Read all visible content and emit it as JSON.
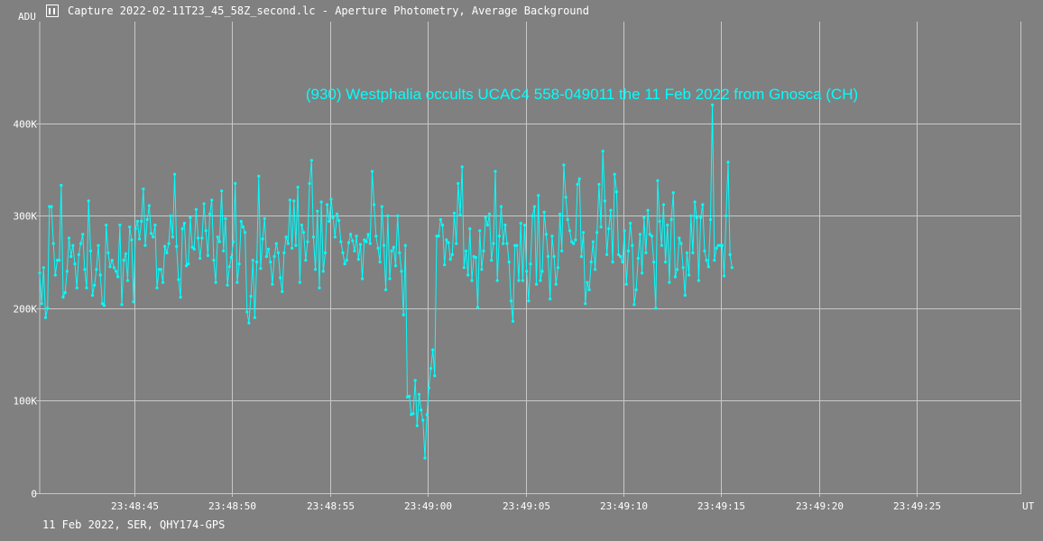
{
  "window": {
    "title": "Capture 2022-02-11T23_45_58Z_second.lc - Aperture Photometry, Average Background"
  },
  "footer": {
    "info": "11 Feb 2022, SER, QHY174-GPS"
  },
  "colors": {
    "background": "#808080",
    "grid": "#c8c8c8",
    "series": "#00ffff",
    "text": "#ffffff"
  },
  "icon": "window-app-icon",
  "chart_data": {
    "type": "line",
    "title": "(930) Westphalia occults UCAC4 558-049011 the 11 Feb 2022 from Gnosca (CH)",
    "ylabel": "ADU",
    "xlabel": "UT",
    "y_ticks": [
      "0",
      "100K",
      "200K",
      "300K",
      "400K"
    ],
    "y_tick_values": [
      0,
      100000,
      200000,
      300000,
      400000
    ],
    "ylim": [
      0,
      510000
    ],
    "x_ticks": [
      "23:48:45",
      "23:48:50",
      "23:48:55",
      "23:49:00",
      "23:49:05",
      "23:49:10",
      "23:49:15",
      "23:49:20",
      "23:49:25"
    ],
    "x_tick_seconds": [
      45,
      50,
      55,
      60,
      65,
      70,
      75,
      80,
      85
    ],
    "xlim_seconds": [
      40.15,
      90.3
    ],
    "x_start_second": 40.15,
    "sample_interval_s": 0.1,
    "grid": true,
    "markers": true,
    "series": [
      {
        "name": "",
        "values": [
          238000,
          205000,
          244000,
          190000,
          200000,
          310000,
          310000,
          270000,
          236000,
          252000,
          252000,
          333000,
          212000,
          217000,
          240000,
          276000,
          256000,
          268000,
          248000,
          222000,
          258000,
          270000,
          280000,
          242000,
          222000,
          316000,
          262000,
          214000,
          225000,
          242000,
          268000,
          236000,
          205000,
          203000,
          290000,
          260000,
          245000,
          252000,
          244000,
          240000,
          234000,
          290000,
          204000,
          252000,
          259000,
          230000,
          288000,
          274000,
          207000,
          286000,
          294000,
          275000,
          294000,
          329000,
          268000,
          296000,
          311000,
          281000,
          277000,
          290000,
          222000,
          242000,
          242000,
          228000,
          267000,
          260000,
          270000,
          300000,
          277000,
          345000,
          267000,
          231000,
          212000,
          286000,
          292000,
          246000,
          248000,
          298000,
          266000,
          264000,
          307000,
          276000,
          254000,
          276000,
          313000,
          284000,
          257000,
          302000,
          317000,
          252000,
          228000,
          277000,
          272000,
          327000,
          262000,
          297000,
          225000,
          245000,
          255000,
          272000,
          335000,
          228000,
          248000,
          294000,
          288000,
          282000,
          196000,
          184000,
          213000,
          252000,
          190000,
          250000,
          343000,
          243000,
          275000,
          297000,
          256000,
          264000,
          250000,
          226000,
          256000,
          270000,
          260000,
          233000,
          218000,
          260000,
          277000,
          270000,
          317000,
          265000,
          316000,
          268000,
          331000,
          228000,
          290000,
          282000,
          252000,
          272000,
          335000,
          360000,
          277000,
          242000,
          305000,
          222000,
          315000,
          240000,
          260000,
          312000,
          294000,
          318000,
          298000,
          277000,
          302000,
          295000,
          272000,
          260000,
          248000,
          252000,
          271000,
          280000,
          273000,
          262000,
          278000,
          253000,
          269000,
          232000,
          274000,
          272000,
          280000,
          270000,
          348000,
          312000,
          278000,
          265000,
          250000,
          310000,
          268000,
          220000,
          300000,
          232000,
          262000,
          266000,
          246000,
          300000,
          260000,
          240000,
          193000,
          268000,
          104000,
          105000,
          85000,
          86000,
          122000,
          73000,
          107000,
          90000,
          79000,
          38000,
          85000,
          114000,
          135000,
          155000,
          127000,
          278000,
          278000,
          296000,
          290000,
          247000,
          274000,
          271000,
          253000,
          258000,
          303000,
          270000,
          335000,
          301000,
          353000,
          244000,
          262000,
          236000,
          286000,
          230000,
          256000,
          255000,
          201000,
          284000,
          242000,
          262000,
          298000,
          290000,
          302000,
          252000,
          270000,
          348000,
          230000,
          278000,
          310000,
          270000,
          290000,
          270000,
          250000,
          208000,
          186000,
          268000,
          268000,
          230000,
          292000,
          230000,
          290000,
          240000,
          208000,
          248000,
          300000,
          310000,
          226000,
          322000,
          230000,
          240000,
          304000,
          280000,
          256000,
          210000,
          278000,
          256000,
          226000,
          244000,
          302000,
          262000,
          355000,
          320000,
          296000,
          284000,
          272000,
          270000,
          274000,
          334000,
          340000,
          256000,
          282000,
          205000,
          228000,
          220000,
          250000,
          272000,
          242000,
          282000,
          334000,
          288000,
          370000,
          316000,
          258000,
          286000,
          306000,
          250000,
          345000,
          326000,
          258000,
          256000,
          250000,
          284000,
          226000,
          262000,
          292000,
          268000,
          204000,
          220000,
          254000,
          280000,
          238000,
          298000,
          260000,
          306000,
          280000,
          278000,
          250000,
          200000,
          338000,
          294000,
          268000,
          312000,
          250000,
          290000,
          228000,
          296000,
          325000,
          234000,
          242000,
          276000,
          270000,
          244000,
          214000,
          260000,
          236000,
          300000,
          260000,
          315000,
          298000,
          230000,
          298000,
          312000,
          262000,
          252000,
          245000,
          296000,
          420000,
          252000,
          265000,
          268000,
          268000,
          268000,
          235000,
          300000,
          358000,
          258000,
          244000
        ]
      }
    ]
  }
}
